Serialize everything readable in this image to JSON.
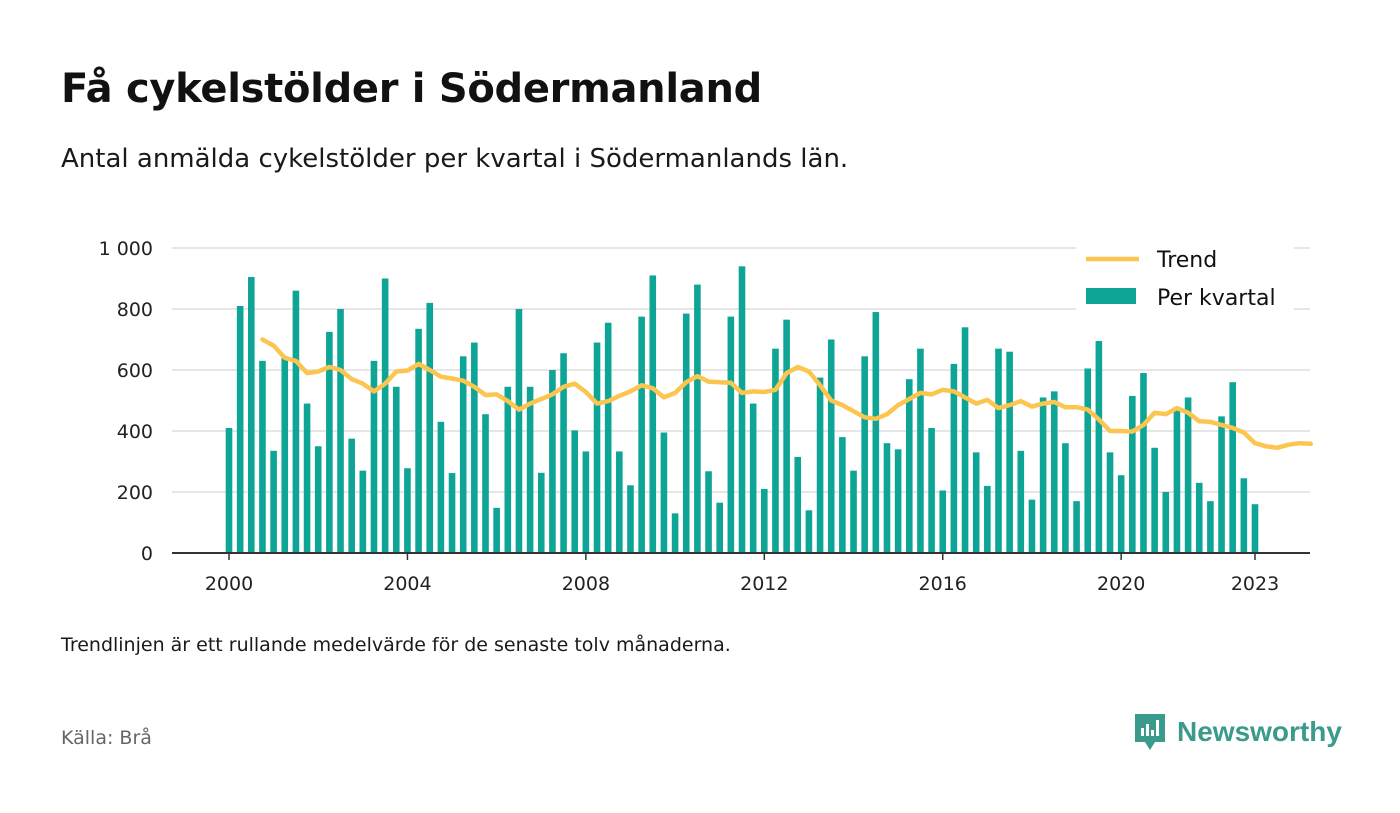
{
  "title": "Få cykelstölder i Södermanland",
  "subtitle": "Antal anmälda cykelstölder per kvartal i Södermanlands län.",
  "footnote": "Trendlinjen är ett rullande medelvärde för de senaste tolv månaderna.",
  "source": "Källa: Brå",
  "brand": "Newsworthy",
  "colors": {
    "bars": "#0ea596",
    "trend": "#fbc550",
    "brand": "#3a9a8c"
  },
  "chart_data": {
    "type": "bar",
    "ylim": [
      0,
      1000
    ],
    "yticks": [
      0,
      200,
      400,
      600,
      800,
      1000
    ],
    "ytick_labels": [
      "0",
      "200",
      "400",
      "600",
      "800",
      "1 000"
    ],
    "xticks": [
      2000,
      2004,
      2008,
      2012,
      2016,
      2020,
      2023
    ],
    "xtick_labels": [
      "2000",
      "2004",
      "2008",
      "2012",
      "2016",
      "2020",
      "2023"
    ],
    "grid": true,
    "legend_position": "top-right",
    "series": [
      {
        "name": "Per kvartal",
        "type": "bar",
        "start": 2000.0,
        "step": 0.25,
        "values": [
          410,
          810,
          905,
          630,
          335,
          640,
          860,
          490,
          350,
          725,
          800,
          375,
          270,
          630,
          900,
          545,
          278,
          735,
          820,
          430,
          262,
          645,
          690,
          455,
          148,
          545,
          800,
          545,
          263,
          600,
          655,
          402,
          333,
          690,
          755,
          333,
          222,
          775,
          910,
          395,
          130,
          785,
          880,
          268,
          165,
          775,
          940,
          490,
          210,
          670,
          765,
          315,
          140,
          575,
          700,
          380,
          270,
          645,
          790,
          360,
          340,
          570,
          670,
          410,
          205,
          620,
          740,
          330,
          220,
          670,
          660,
          335,
          175,
          510,
          530,
          360,
          170,
          605,
          695,
          330,
          255,
          515,
          590,
          345,
          200,
          470,
          510,
          230,
          170,
          448,
          560,
          245,
          160
        ]
      },
      {
        "name": "Trend",
        "type": "line",
        "start": 2000.75,
        "step": 0.25,
        "values": [
          700,
          680,
          640,
          630,
          590,
          595,
          610,
          600,
          570,
          555,
          530,
          555,
          595,
          598,
          620,
          600,
          578,
          572,
          565,
          545,
          518,
          520,
          498,
          470,
          490,
          505,
          520,
          545,
          555,
          528,
          490,
          498,
          515,
          530,
          550,
          540,
          510,
          525,
          560,
          580,
          562,
          560,
          558,
          525,
          530,
          528,
          535,
          590,
          610,
          595,
          550,
          500,
          485,
          465,
          445,
          440,
          455,
          485,
          505,
          525,
          520,
          535,
          530,
          510,
          490,
          502,
          475,
          485,
          498,
          480,
          490,
          495,
          478,
          478,
          470,
          438,
          400,
          400,
          398,
          420,
          460,
          455,
          475,
          460,
          432,
          430,
          420,
          410,
          395,
          360,
          350,
          345,
          355,
          360,
          358
        ]
      }
    ]
  }
}
